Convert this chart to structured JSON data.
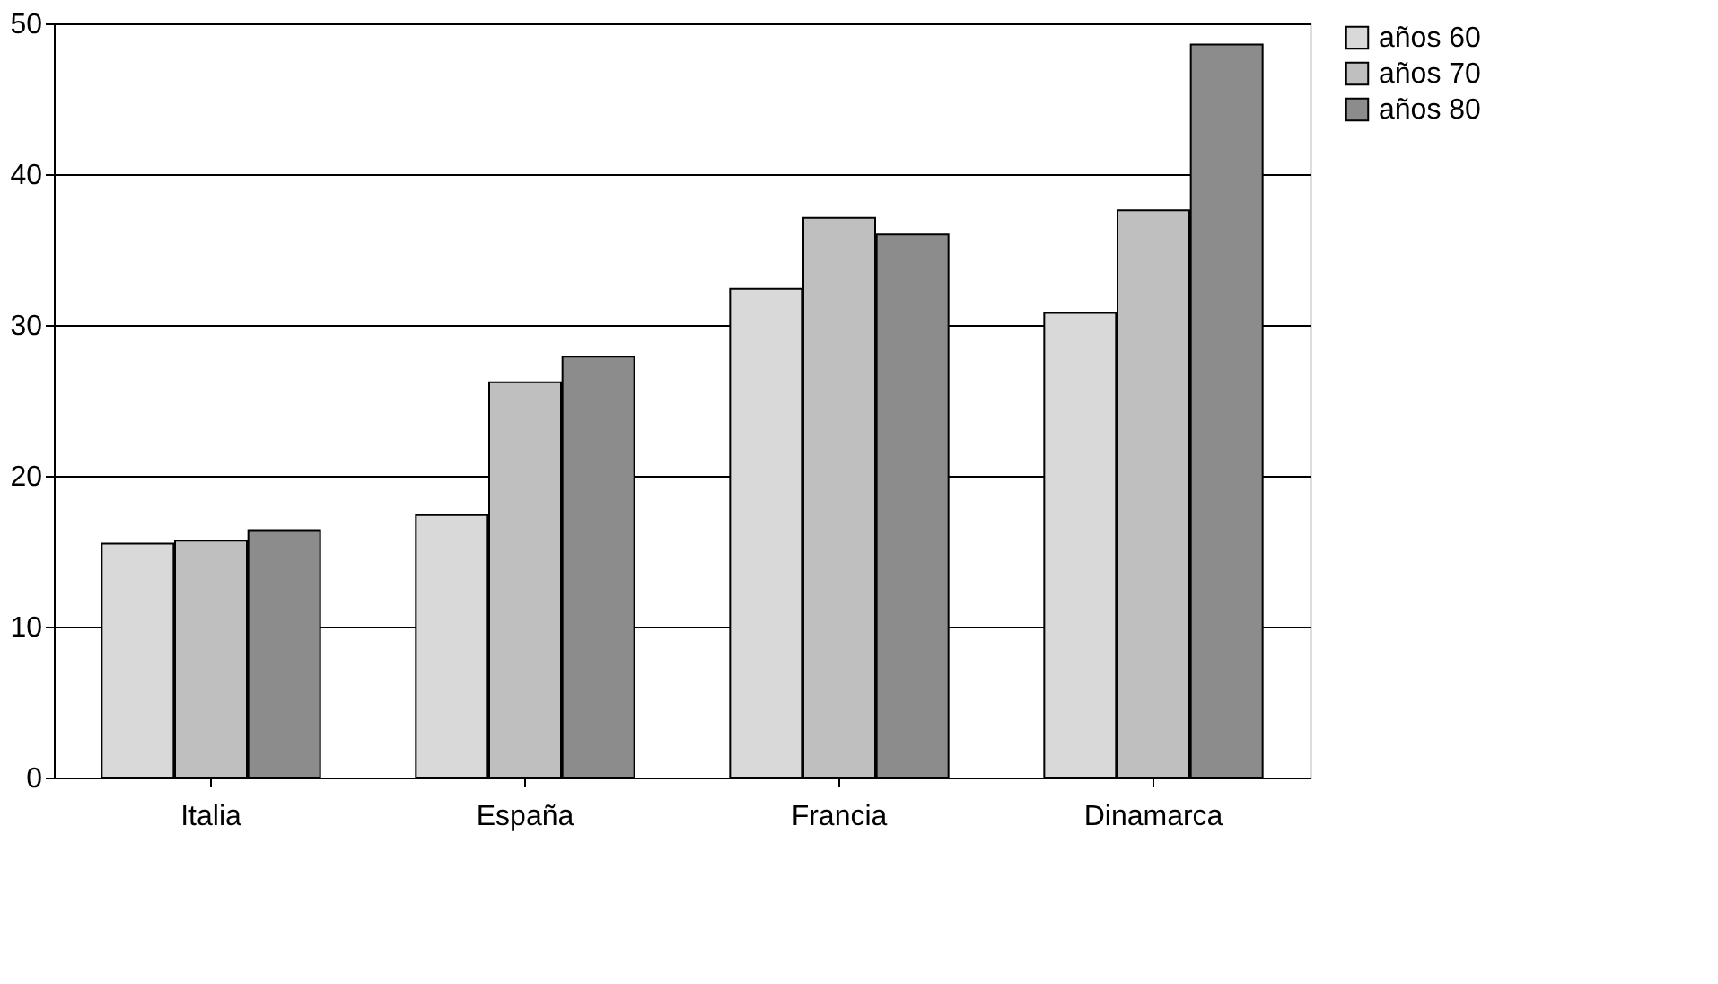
{
  "chart_data": {
    "type": "bar",
    "categories": [
      "Italia",
      "España",
      "Francia",
      "Dinamarca"
    ],
    "series": [
      {
        "name": "años 60",
        "color": "#d9d9d9",
        "values": [
          15.5,
          17.4,
          32.4,
          30.8
        ]
      },
      {
        "name": "años 70",
        "color": "#bfbfbf",
        "values": [
          15.7,
          26.2,
          37.1,
          37.6
        ]
      },
      {
        "name": "años 80",
        "color": "#8c8c8c",
        "values": [
          16.4,
          27.9,
          36.0,
          48.6
        ]
      }
    ],
    "ylim": [
      0,
      50
    ],
    "yticks": [
      0,
      10,
      20,
      30,
      40,
      50
    ],
    "grid": "y",
    "legend": "right"
  }
}
